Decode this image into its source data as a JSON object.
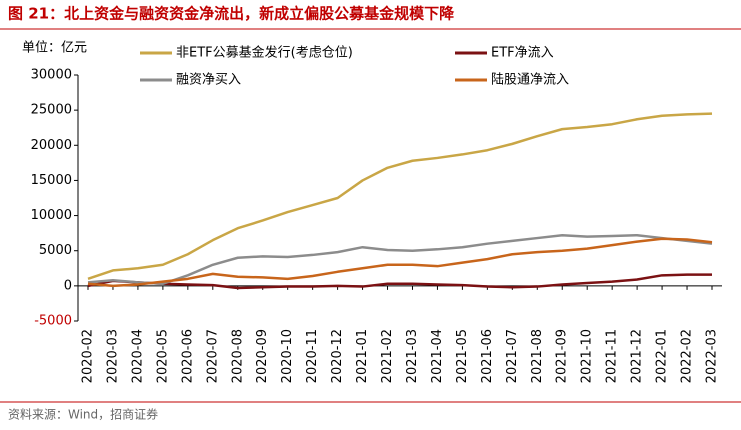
{
  "chart_data": {
    "type": "line",
    "title": "图 21：北上资金与融资资金净流出，新成立偏股公募基金规模下降",
    "unit_label": "单位：亿元",
    "source": "资料来源：Wind，招商证券",
    "categories": [
      "2020-02",
      "2020-03",
      "2020-04",
      "2020-05",
      "2020-06",
      "2020-07",
      "2020-08",
      "2020-09",
      "2020-10",
      "2020-11",
      "2020-12",
      "2021-01",
      "2021-02",
      "2021-03",
      "2021-04",
      "2021-05",
      "2021-06",
      "2021-07",
      "2021-08",
      "2021-09",
      "2021-10",
      "2021-11",
      "2021-12",
      "2022-01",
      "2022-02",
      "2022-03"
    ],
    "series": [
      {
        "name": "非ETF公募基金发行(考虑仓位)",
        "color": "#c9a646",
        "values": [
          1000,
          2200,
          2500,
          3000,
          4500,
          6500,
          8200,
          9300,
          10500,
          11500,
          12500,
          15000,
          16800,
          17800,
          18200,
          18700,
          19300,
          20200,
          21300,
          22300,
          22600,
          23000,
          23700,
          24200,
          24400,
          24500
        ]
      },
      {
        "name": "ETF净流入",
        "color": "#7b1113",
        "values": [
          0,
          700,
          500,
          300,
          200,
          100,
          -300,
          -200,
          -100,
          -100,
          0,
          -100,
          300,
          300,
          200,
          100,
          -100,
          -200,
          -100,
          200,
          400,
          600,
          900,
          1500,
          1600,
          1600
        ]
      },
      {
        "name": "融资净买入",
        "color": "#8c8c8c",
        "values": [
          500,
          800,
          500,
          300,
          1500,
          3000,
          4000,
          4200,
          4100,
          4400,
          4800,
          5500,
          5100,
          5000,
          5200,
          5500,
          6000,
          6400,
          6800,
          7200,
          7000,
          7100,
          7200,
          6800,
          6400,
          6000
        ]
      },
      {
        "name": "陆股通净流入",
        "color": "#c8651b",
        "values": [
          300,
          0,
          200,
          600,
          1000,
          1700,
          1300,
          1200,
          1000,
          1400,
          2000,
          2500,
          3000,
          3000,
          2800,
          3300,
          3800,
          4500,
          4800,
          5000,
          5300,
          5800,
          6300,
          6700,
          6600,
          6200
        ]
      }
    ],
    "ylim": [
      -5000,
      30000
    ],
    "yticks": [
      -5000,
      0,
      5000,
      10000,
      15000,
      20000,
      25000,
      30000
    ],
    "legend": "top"
  }
}
